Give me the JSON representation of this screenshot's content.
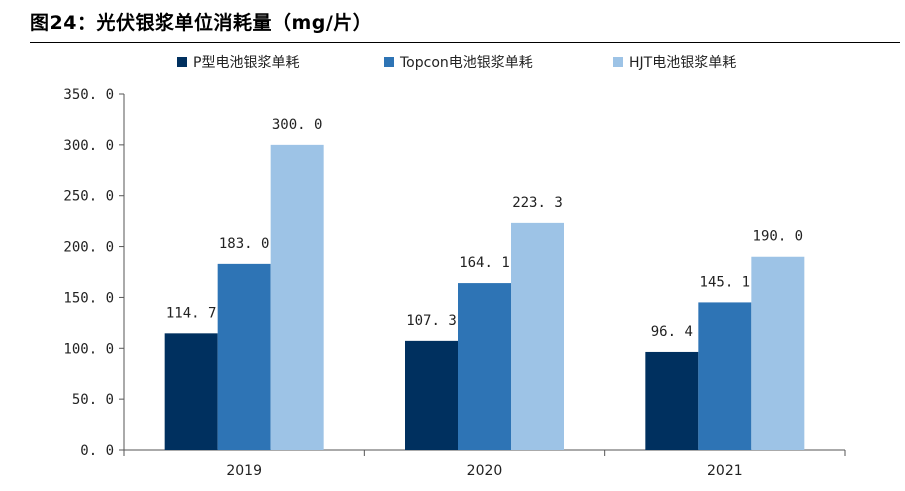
{
  "figure_title": "图24：光伏银浆单位消耗量（mg/片）",
  "colors": {
    "p_type": "#00305f",
    "topcon": "#2e74b5",
    "hjt": "#9dc3e6",
    "axis": "#555555"
  },
  "chart_data": {
    "type": "bar",
    "title": "",
    "xlabel": "",
    "ylabel": "",
    "categories": [
      "2019",
      "2020",
      "2021"
    ],
    "series": [
      {
        "name": "P型电池银浆单耗",
        "values": [
          114.7,
          107.3,
          96.4
        ]
      },
      {
        "name": "Topcon电池银浆单耗",
        "values": [
          183.0,
          164.1,
          145.1
        ]
      },
      {
        "name": "HJT电池银浆单耗",
        "values": [
          300.0,
          223.3,
          190.0
        ]
      }
    ],
    "value_labels": [
      [
        "114. 7",
        "107. 3",
        "96. 4"
      ],
      [
        "183. 0",
        "164. 1",
        "145. 1"
      ],
      [
        "300. 0",
        "223. 3",
        "190. 0"
      ]
    ],
    "ylim": [
      0,
      350
    ],
    "yticks": [
      0,
      50,
      100,
      150,
      200,
      250,
      300,
      350
    ],
    "ytick_labels": [
      "0. 0",
      "50. 0",
      "100. 0",
      "150. 0",
      "200. 0",
      "250. 0",
      "300. 0",
      "350. 0"
    ],
    "grid": false,
    "legend": "top-center"
  }
}
